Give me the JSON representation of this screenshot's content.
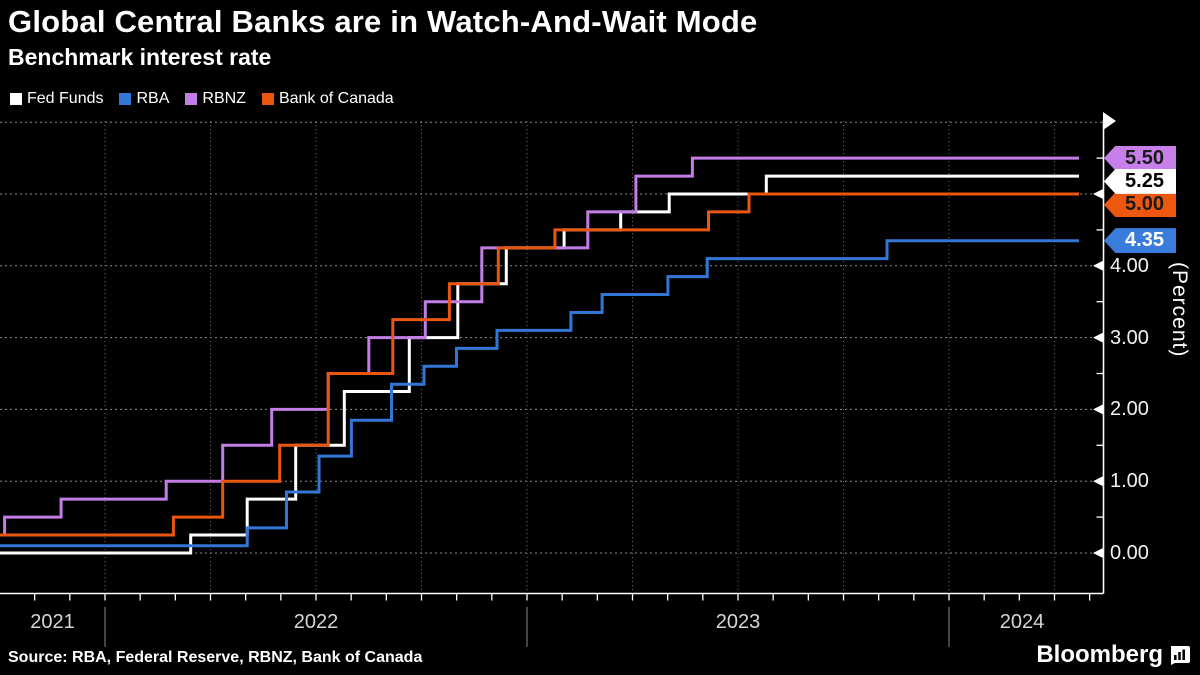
{
  "header": {
    "title": "Global Central Banks are in Watch-And-Wait Mode",
    "subtitle": "Benchmark interest rate"
  },
  "legend": [
    {
      "label": "Fed Funds",
      "color": "#ffffff"
    },
    {
      "label": "RBA",
      "color": "#3377d6"
    },
    {
      "label": "RBNZ",
      "color": "#c27de6"
    },
    {
      "label": "Bank of Canada",
      "color": "#eb560f"
    }
  ],
  "chart_data": {
    "type": "line",
    "step": true,
    "title": "Benchmark interest rate",
    "ylabel": "(Percent)",
    "x_unit": "decimal_year",
    "x_range": [
      2021.751,
      2024.346
    ],
    "x_end_of_data": 2024.308,
    "ylim": [
      -0.56,
      6.66
    ],
    "grid": true,
    "y_gridlines": [
      0,
      1,
      2,
      3,
      4,
      5,
      6
    ],
    "y_axis_labels": [
      {
        "value": 0,
        "label": "0.00"
      },
      {
        "value": 1,
        "label": "1.00"
      },
      {
        "value": 2,
        "label": "2.00"
      },
      {
        "value": 3,
        "label": "3.00"
      },
      {
        "value": 4,
        "label": "4.00"
      }
    ],
    "y_minor_tick_step": 0.5,
    "x_gridline_step_years": 0.25,
    "x_tick_step_years": 0.08333,
    "year_labels": [
      {
        "label": "2021",
        "from": 2021.751,
        "to": 2022.0
      },
      {
        "label": "2022",
        "from": 2022.0,
        "to": 2023.0
      },
      {
        "label": "2023",
        "from": 2023.0,
        "to": 2024.0
      },
      {
        "label": "2024",
        "from": 2024.0,
        "to": 2024.346
      }
    ],
    "year_boundaries": [
      2022,
      2023,
      2024
    ],
    "series": [
      {
        "name": "Fed Funds",
        "color": "#ffffff",
        "end_label": {
          "text": "5.25",
          "bg": "#ffffff",
          "fg": "#000000"
        },
        "points": [
          [
            2021.751,
            0.0
          ],
          [
            2022.203,
            0.25
          ],
          [
            2022.337,
            0.75
          ],
          [
            2022.452,
            1.5
          ],
          [
            2022.567,
            2.25
          ],
          [
            2022.721,
            3.0
          ],
          [
            2022.836,
            3.75
          ],
          [
            2022.951,
            4.25
          ],
          [
            2023.088,
            4.5
          ],
          [
            2023.222,
            4.75
          ],
          [
            2023.337,
            5.0
          ],
          [
            2023.567,
            5.25
          ],
          [
            2024.308,
            5.25
          ]
        ]
      },
      {
        "name": "RBA",
        "color": "#3377d6",
        "end_label": {
          "text": "4.35",
          "bg": "#3a7cdb",
          "fg": "#ffffff"
        },
        "points": [
          [
            2021.751,
            0.1
          ],
          [
            2022.337,
            0.35
          ],
          [
            2022.43,
            0.85
          ],
          [
            2022.507,
            1.35
          ],
          [
            2022.584,
            1.85
          ],
          [
            2022.679,
            2.35
          ],
          [
            2022.756,
            2.6
          ],
          [
            2022.833,
            2.85
          ],
          [
            2022.929,
            3.1
          ],
          [
            2023.104,
            3.35
          ],
          [
            2023.178,
            3.6
          ],
          [
            2023.334,
            3.85
          ],
          [
            2023.427,
            4.1
          ],
          [
            2023.853,
            4.35
          ],
          [
            2024.308,
            4.35
          ]
        ]
      },
      {
        "name": "RBNZ",
        "color": "#c27de6",
        "end_label": {
          "text": "5.50",
          "bg": "#c97fe9",
          "fg": "#1a1a1a"
        },
        "points": [
          [
            2021.751,
            0.25
          ],
          [
            2021.762,
            0.5
          ],
          [
            2021.896,
            0.75
          ],
          [
            2022.145,
            1.0
          ],
          [
            2022.279,
            1.5
          ],
          [
            2022.395,
            2.0
          ],
          [
            2022.529,
            2.5
          ],
          [
            2022.625,
            3.0
          ],
          [
            2022.759,
            3.5
          ],
          [
            2022.893,
            4.25
          ],
          [
            2023.144,
            4.75
          ],
          [
            2023.258,
            5.25
          ],
          [
            2023.392,
            5.5
          ],
          [
            2024.308,
            5.5
          ]
        ]
      },
      {
        "name": "Bank of Canada",
        "color": "#eb560f",
        "end_label": {
          "text": "5.00",
          "bg": "#ed5710",
          "fg": "#1a1a1a"
        },
        "points": [
          [
            2021.751,
            0.25
          ],
          [
            2022.162,
            0.5
          ],
          [
            2022.279,
            1.0
          ],
          [
            2022.414,
            1.5
          ],
          [
            2022.529,
            2.5
          ],
          [
            2022.682,
            3.25
          ],
          [
            2022.816,
            3.75
          ],
          [
            2022.932,
            4.25
          ],
          [
            2023.066,
            4.5
          ],
          [
            2023.43,
            4.75
          ],
          [
            2023.526,
            5.0
          ],
          [
            2024.308,
            5.0
          ]
        ]
      }
    ],
    "legend_position": "top-left"
  },
  "footer": {
    "source": "Source: RBA, Federal Reserve, RBNZ, Bank of Canada",
    "brand": "Bloomberg"
  }
}
